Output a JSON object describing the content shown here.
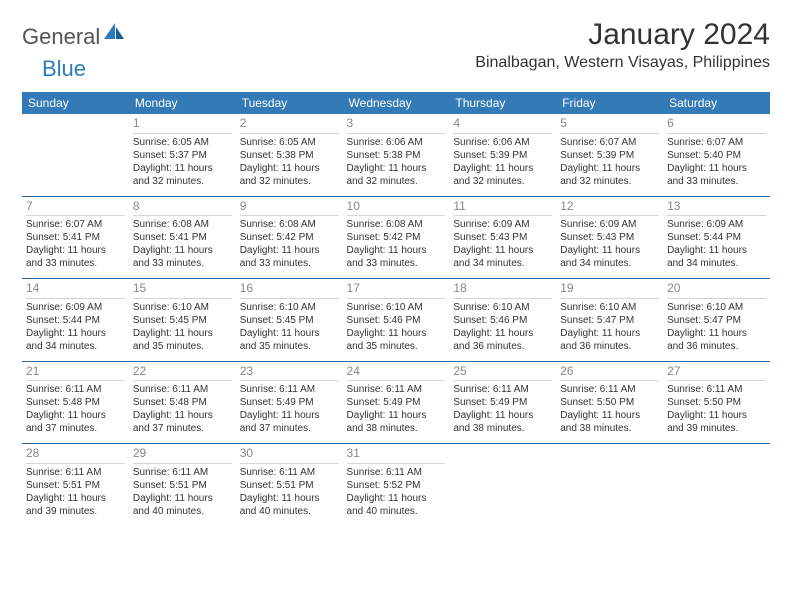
{
  "brand": {
    "part1": "General",
    "part2": "Blue"
  },
  "title": "January 2024",
  "subtitle": "Binalbagan, Western Visayas, Philippines",
  "colors": {
    "header_bg": "#337ab7",
    "header_text": "#ffffff",
    "row_border": "#2b6ca3",
    "cell_divider": "#d6d6d6",
    "daynum": "#888888",
    "body_text": "#333333",
    "brand_gray": "#555555",
    "brand_blue": "#2b7bbf",
    "background": "#ffffff"
  },
  "typography": {
    "title_fontsize": 30,
    "subtitle_fontsize": 16,
    "dayheader_fontsize": 12,
    "daynum_fontsize": 12,
    "cell_fontsize": 10
  },
  "day_headers": [
    "Sunday",
    "Monday",
    "Tuesday",
    "Wednesday",
    "Thursday",
    "Friday",
    "Saturday"
  ],
  "weeks": [
    [
      {
        "empty": true
      },
      {
        "num": "1",
        "sunrise": "Sunrise: 6:05 AM",
        "sunset": "Sunset: 5:37 PM",
        "day1": "Daylight: 11 hours",
        "day2": "and 32 minutes."
      },
      {
        "num": "2",
        "sunrise": "Sunrise: 6:05 AM",
        "sunset": "Sunset: 5:38 PM",
        "day1": "Daylight: 11 hours",
        "day2": "and 32 minutes."
      },
      {
        "num": "3",
        "sunrise": "Sunrise: 6:06 AM",
        "sunset": "Sunset: 5:38 PM",
        "day1": "Daylight: 11 hours",
        "day2": "and 32 minutes."
      },
      {
        "num": "4",
        "sunrise": "Sunrise: 6:06 AM",
        "sunset": "Sunset: 5:39 PM",
        "day1": "Daylight: 11 hours",
        "day2": "and 32 minutes."
      },
      {
        "num": "5",
        "sunrise": "Sunrise: 6:07 AM",
        "sunset": "Sunset: 5:39 PM",
        "day1": "Daylight: 11 hours",
        "day2": "and 32 minutes."
      },
      {
        "num": "6",
        "sunrise": "Sunrise: 6:07 AM",
        "sunset": "Sunset: 5:40 PM",
        "day1": "Daylight: 11 hours",
        "day2": "and 33 minutes."
      }
    ],
    [
      {
        "num": "7",
        "sunrise": "Sunrise: 6:07 AM",
        "sunset": "Sunset: 5:41 PM",
        "day1": "Daylight: 11 hours",
        "day2": "and 33 minutes."
      },
      {
        "num": "8",
        "sunrise": "Sunrise: 6:08 AM",
        "sunset": "Sunset: 5:41 PM",
        "day1": "Daylight: 11 hours",
        "day2": "and 33 minutes."
      },
      {
        "num": "9",
        "sunrise": "Sunrise: 6:08 AM",
        "sunset": "Sunset: 5:42 PM",
        "day1": "Daylight: 11 hours",
        "day2": "and 33 minutes."
      },
      {
        "num": "10",
        "sunrise": "Sunrise: 6:08 AM",
        "sunset": "Sunset: 5:42 PM",
        "day1": "Daylight: 11 hours",
        "day2": "and 33 minutes."
      },
      {
        "num": "11",
        "sunrise": "Sunrise: 6:09 AM",
        "sunset": "Sunset: 5:43 PM",
        "day1": "Daylight: 11 hours",
        "day2": "and 34 minutes."
      },
      {
        "num": "12",
        "sunrise": "Sunrise: 6:09 AM",
        "sunset": "Sunset: 5:43 PM",
        "day1": "Daylight: 11 hours",
        "day2": "and 34 minutes."
      },
      {
        "num": "13",
        "sunrise": "Sunrise: 6:09 AM",
        "sunset": "Sunset: 5:44 PM",
        "day1": "Daylight: 11 hours",
        "day2": "and 34 minutes."
      }
    ],
    [
      {
        "num": "14",
        "sunrise": "Sunrise: 6:09 AM",
        "sunset": "Sunset: 5:44 PM",
        "day1": "Daylight: 11 hours",
        "day2": "and 34 minutes."
      },
      {
        "num": "15",
        "sunrise": "Sunrise: 6:10 AM",
        "sunset": "Sunset: 5:45 PM",
        "day1": "Daylight: 11 hours",
        "day2": "and 35 minutes."
      },
      {
        "num": "16",
        "sunrise": "Sunrise: 6:10 AM",
        "sunset": "Sunset: 5:45 PM",
        "day1": "Daylight: 11 hours",
        "day2": "and 35 minutes."
      },
      {
        "num": "17",
        "sunrise": "Sunrise: 6:10 AM",
        "sunset": "Sunset: 5:46 PM",
        "day1": "Daylight: 11 hours",
        "day2": "and 35 minutes."
      },
      {
        "num": "18",
        "sunrise": "Sunrise: 6:10 AM",
        "sunset": "Sunset: 5:46 PM",
        "day1": "Daylight: 11 hours",
        "day2": "and 36 minutes."
      },
      {
        "num": "19",
        "sunrise": "Sunrise: 6:10 AM",
        "sunset": "Sunset: 5:47 PM",
        "day1": "Daylight: 11 hours",
        "day2": "and 36 minutes."
      },
      {
        "num": "20",
        "sunrise": "Sunrise: 6:10 AM",
        "sunset": "Sunset: 5:47 PM",
        "day1": "Daylight: 11 hours",
        "day2": "and 36 minutes."
      }
    ],
    [
      {
        "num": "21",
        "sunrise": "Sunrise: 6:11 AM",
        "sunset": "Sunset: 5:48 PM",
        "day1": "Daylight: 11 hours",
        "day2": "and 37 minutes."
      },
      {
        "num": "22",
        "sunrise": "Sunrise: 6:11 AM",
        "sunset": "Sunset: 5:48 PM",
        "day1": "Daylight: 11 hours",
        "day2": "and 37 minutes."
      },
      {
        "num": "23",
        "sunrise": "Sunrise: 6:11 AM",
        "sunset": "Sunset: 5:49 PM",
        "day1": "Daylight: 11 hours",
        "day2": "and 37 minutes."
      },
      {
        "num": "24",
        "sunrise": "Sunrise: 6:11 AM",
        "sunset": "Sunset: 5:49 PM",
        "day1": "Daylight: 11 hours",
        "day2": "and 38 minutes."
      },
      {
        "num": "25",
        "sunrise": "Sunrise: 6:11 AM",
        "sunset": "Sunset: 5:49 PM",
        "day1": "Daylight: 11 hours",
        "day2": "and 38 minutes."
      },
      {
        "num": "26",
        "sunrise": "Sunrise: 6:11 AM",
        "sunset": "Sunset: 5:50 PM",
        "day1": "Daylight: 11 hours",
        "day2": "and 38 minutes."
      },
      {
        "num": "27",
        "sunrise": "Sunrise: 6:11 AM",
        "sunset": "Sunset: 5:50 PM",
        "day1": "Daylight: 11 hours",
        "day2": "and 39 minutes."
      }
    ],
    [
      {
        "num": "28",
        "sunrise": "Sunrise: 6:11 AM",
        "sunset": "Sunset: 5:51 PM",
        "day1": "Daylight: 11 hours",
        "day2": "and 39 minutes."
      },
      {
        "num": "29",
        "sunrise": "Sunrise: 6:11 AM",
        "sunset": "Sunset: 5:51 PM",
        "day1": "Daylight: 11 hours",
        "day2": "and 40 minutes."
      },
      {
        "num": "30",
        "sunrise": "Sunrise: 6:11 AM",
        "sunset": "Sunset: 5:51 PM",
        "day1": "Daylight: 11 hours",
        "day2": "and 40 minutes."
      },
      {
        "num": "31",
        "sunrise": "Sunrise: 6:11 AM",
        "sunset": "Sunset: 5:52 PM",
        "day1": "Daylight: 11 hours",
        "day2": "and 40 minutes."
      },
      {
        "empty": true
      },
      {
        "empty": true
      },
      {
        "empty": true
      }
    ]
  ]
}
